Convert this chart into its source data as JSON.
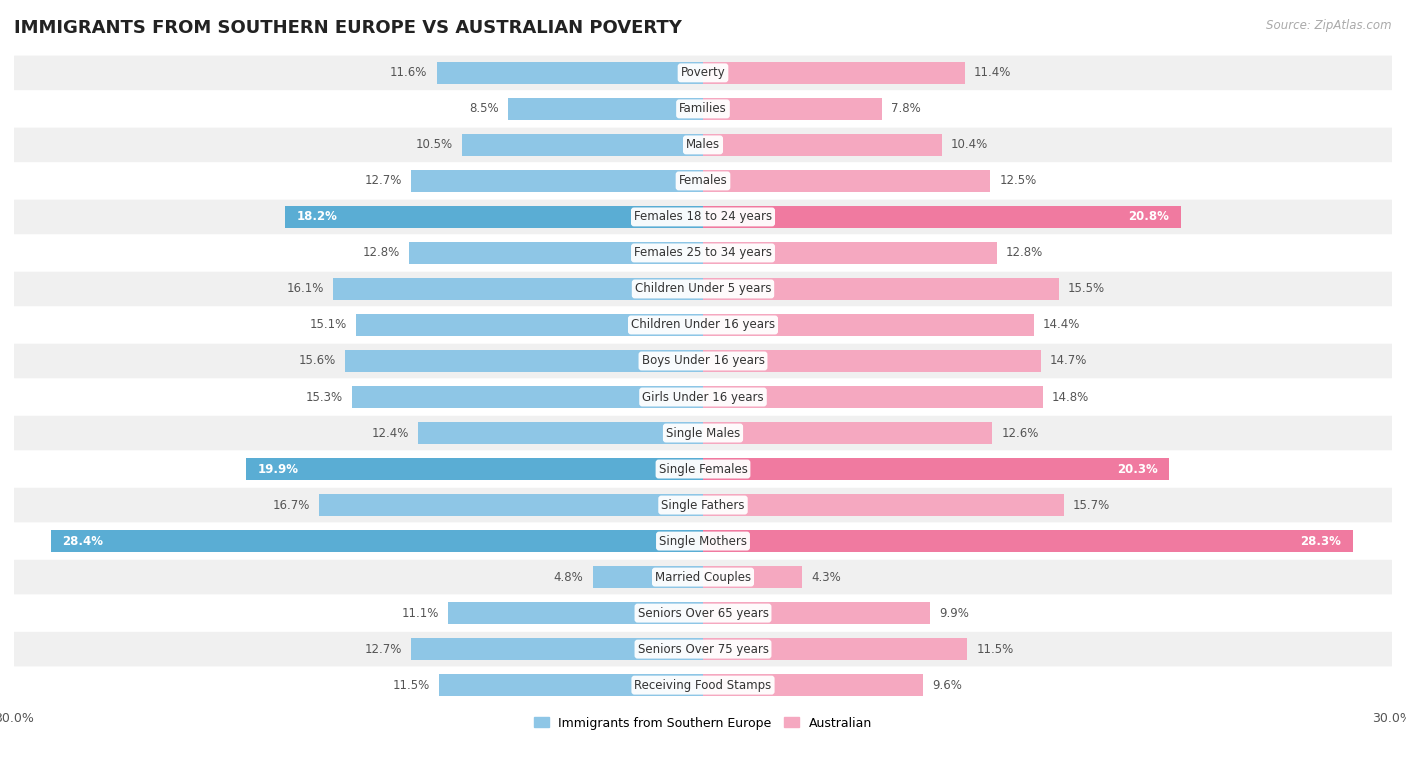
{
  "title": "IMMIGRANTS FROM SOUTHERN EUROPE VS AUSTRALIAN POVERTY",
  "source": "Source: ZipAtlas.com",
  "categories": [
    "Poverty",
    "Families",
    "Males",
    "Females",
    "Females 18 to 24 years",
    "Females 25 to 34 years",
    "Children Under 5 years",
    "Children Under 16 years",
    "Boys Under 16 years",
    "Girls Under 16 years",
    "Single Males",
    "Single Females",
    "Single Fathers",
    "Single Mothers",
    "Married Couples",
    "Seniors Over 65 years",
    "Seniors Over 75 years",
    "Receiving Food Stamps"
  ],
  "immigrants": [
    11.6,
    8.5,
    10.5,
    12.7,
    18.2,
    12.8,
    16.1,
    15.1,
    15.6,
    15.3,
    12.4,
    19.9,
    16.7,
    28.4,
    4.8,
    11.1,
    12.7,
    11.5
  ],
  "australian": [
    11.4,
    7.8,
    10.4,
    12.5,
    20.8,
    12.8,
    15.5,
    14.4,
    14.7,
    14.8,
    12.6,
    20.3,
    15.7,
    28.3,
    4.3,
    9.9,
    11.5,
    9.6
  ],
  "immigrant_color": "#8ec6e6",
  "australian_color": "#f5a8c0",
  "immigrant_highlight_color": "#5aadd4",
  "australian_highlight_color": "#f07aa0",
  "highlight_rows": [
    4,
    11,
    13
  ],
  "xlim": 30.0,
  "bar_height": 0.62,
  "row_bg_light": "#f0f0f0",
  "row_bg_dark": "#ffffff",
  "title_fontsize": 13,
  "label_fontsize": 8.5,
  "value_fontsize": 8.5,
  "legend_fontsize": 9
}
